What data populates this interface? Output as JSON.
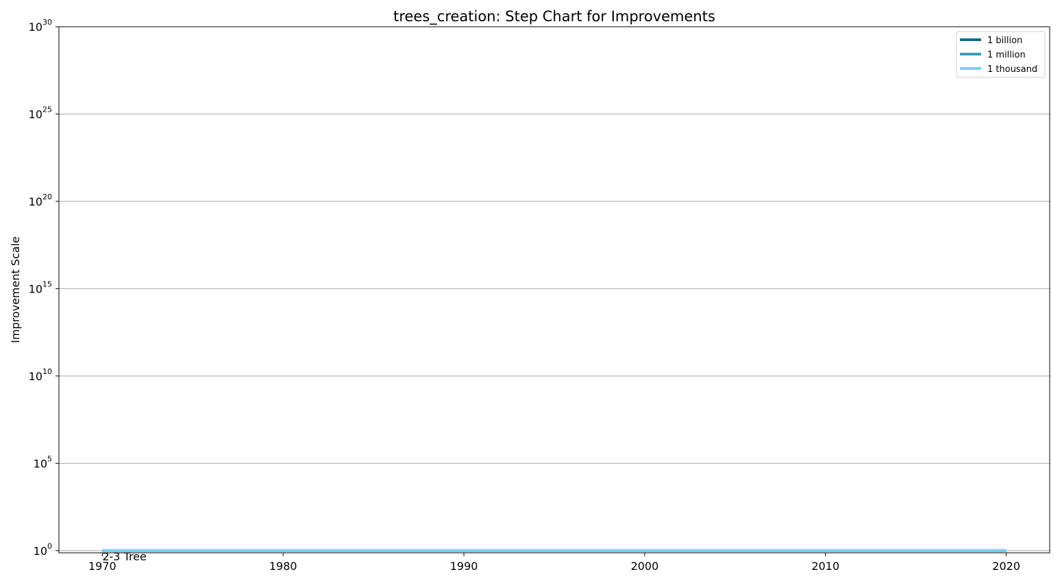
{
  "chart_data": {
    "type": "line",
    "step": true,
    "title": "trees_creation: Step Chart for Improvements",
    "xlabel": "",
    "ylabel": "Improvement Scale",
    "xlim": [
      1967.6,
      2022.4
    ],
    "ylim": [
      0.75,
      1e+30
    ],
    "yscale": "log",
    "x_ticks": [
      1970,
      1980,
      1990,
      2000,
      2010,
      2020
    ],
    "y_ticks": [
      {
        "base": "10",
        "exp": "0",
        "value": 1
      },
      {
        "base": "10",
        "exp": "5",
        "value": 100000.0
      },
      {
        "base": "10",
        "exp": "10",
        "value": 10000000000.0
      },
      {
        "base": "10",
        "exp": "15",
        "value": 1000000000000000.0
      },
      {
        "base": "10",
        "exp": "20",
        "value": 1e+20
      },
      {
        "base": "10",
        "exp": "25",
        "value": 1e+25
      },
      {
        "base": "10",
        "exp": "30",
        "value": 1e+30
      }
    ],
    "grid": "y-major",
    "legend_position": "top-right",
    "series": [
      {
        "name": "1 billion",
        "color": "#136d8a",
        "x": [
          1970,
          2020
        ],
        "y": [
          1,
          1
        ]
      },
      {
        "name": "1 million",
        "color": "#3b9fbb",
        "x": [
          1970,
          2020
        ],
        "y": [
          1,
          1
        ]
      },
      {
        "name": "1 thousand",
        "color": "#76cff5",
        "x": [
          1970,
          2020
        ],
        "y": [
          1,
          1
        ]
      }
    ],
    "annotations": [
      {
        "text": "2-3 Tree",
        "x": 1970,
        "y": 1
      }
    ]
  }
}
